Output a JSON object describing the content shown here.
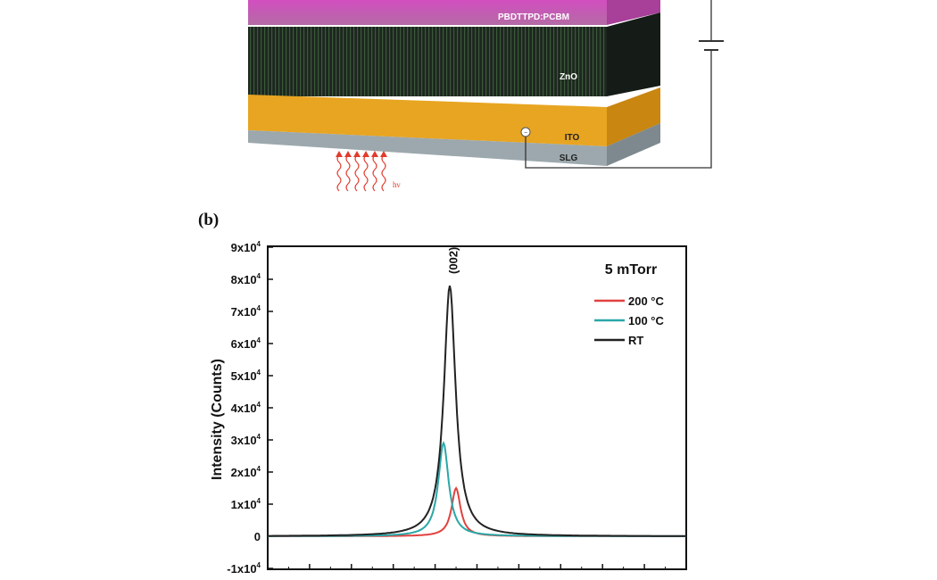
{
  "device": {
    "layers": [
      {
        "name": "PBDTTPD:PCBM",
        "color": "#c64fb4"
      },
      {
        "name": "ZnO",
        "color": "#1f2a22"
      },
      {
        "name": "ITO",
        "color": "#e7a31f"
      },
      {
        "name": "SLG",
        "color": "#9ba7ac"
      }
    ],
    "light_label": "hν"
  },
  "panel_label": "(b)",
  "chart_data": {
    "type": "line",
    "title": "5 mTorr",
    "xlabel": "",
    "ylabel": "Intensity (Counts)",
    "xlim": [
      30,
      40
    ],
    "ylim": [
      -10000,
      90000
    ],
    "yticks": [
      {
        "value": 90000,
        "base": "9x10",
        "exp": "4"
      },
      {
        "value": 80000,
        "base": "8x10",
        "exp": "4"
      },
      {
        "value": 70000,
        "base": "7x10",
        "exp": "4"
      },
      {
        "value": 60000,
        "base": "6x10",
        "exp": "4"
      },
      {
        "value": 50000,
        "base": "5x10",
        "exp": "4"
      },
      {
        "value": 40000,
        "base": "4x10",
        "exp": "4"
      },
      {
        "value": 30000,
        "base": "3x10",
        "exp": "4"
      },
      {
        "value": 20000,
        "base": "2x10",
        "exp": "4"
      },
      {
        "value": 10000,
        "base": "1x10",
        "exp": "4"
      },
      {
        "value": 0,
        "base": "0",
        "exp": ""
      },
      {
        "value": -10000,
        "base": "-1x10",
        "exp": "4"
      }
    ],
    "annotation": {
      "text": "(002)",
      "x": 34.45,
      "y": 80000
    },
    "legend_placement": "top-right",
    "series": [
      {
        "name": "200 °C",
        "color": "#e0423f",
        "peak_x": 34.5,
        "peak_y": 15000,
        "width": 0.13
      },
      {
        "name": "100 °C",
        "color": "#2aa7a7",
        "peak_x": 34.2,
        "peak_y": 29000,
        "width": 0.15
      },
      {
        "name": "RT",
        "color": "#222222",
        "peak_x": 34.35,
        "peak_y": 78000,
        "width": 0.17
      }
    ]
  }
}
